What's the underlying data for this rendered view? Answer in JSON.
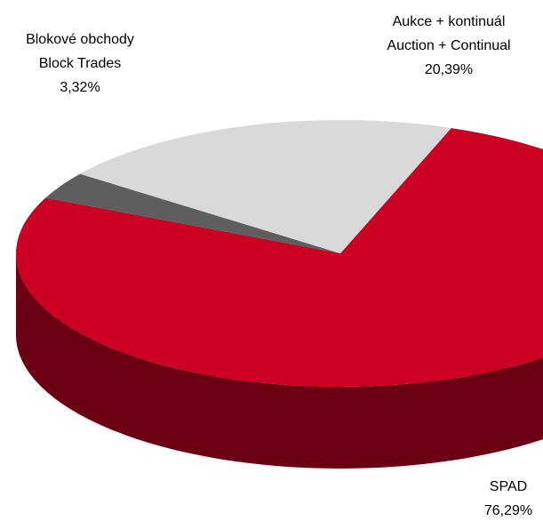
{
  "chart_data": {
    "type": "pie",
    "categories": [
      "SPAD",
      "Blokové obchody",
      "Aukce + kontinuál"
    ],
    "categories_en": [
      null,
      "Block Trades",
      "Auction + Continual"
    ],
    "values": [
      76.29,
      3.32,
      20.39
    ],
    "value_labels": [
      "76,29%",
      "3,32%",
      "20,39%"
    ],
    "colors": [
      "#cc0022",
      "#5e5e5e",
      "#d9d9d9"
    ],
    "side_colors": [
      "#6a0012",
      "#333333",
      "#9a9a9a"
    ]
  }
}
